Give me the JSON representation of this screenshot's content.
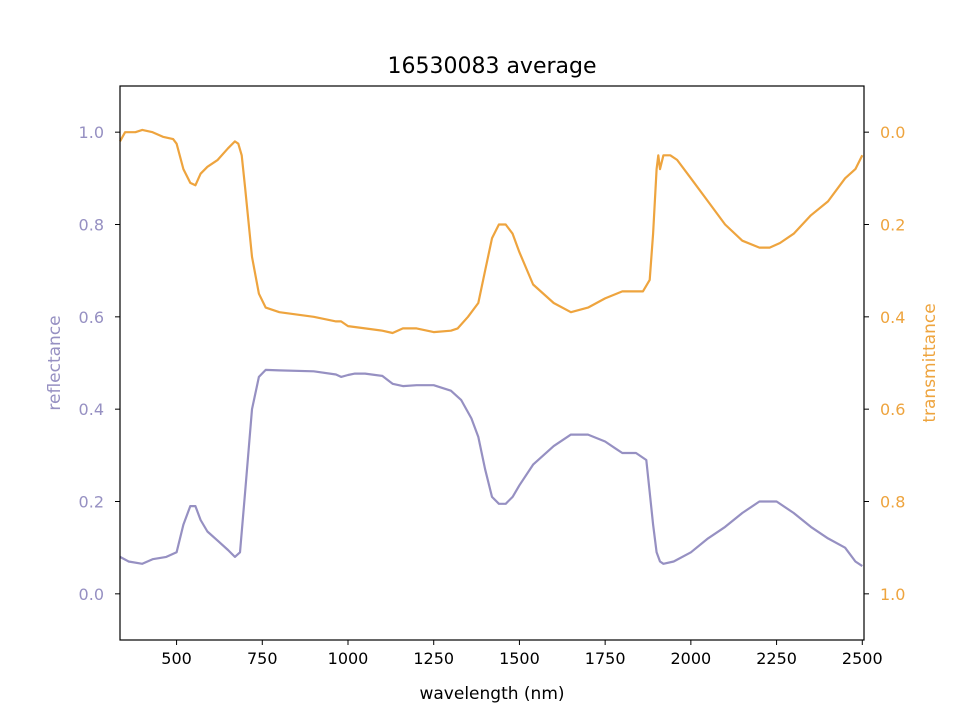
{
  "chart_data": {
    "type": "line",
    "title": "16530083 average",
    "xlabel": "wavelength (nm)",
    "ylabel_left": "reflectance",
    "ylabel_right": "transmittance",
    "xlim": [
      335,
      2505
    ],
    "ylim_left": [
      -0.1,
      1.1
    ],
    "ylim_right": [
      1.1,
      -0.1
    ],
    "x_ticks": [
      500,
      750,
      1000,
      1250,
      1500,
      1750,
      2000,
      2250,
      2500
    ],
    "y_ticks_left": [
      0.0,
      0.2,
      0.4,
      0.6,
      0.8,
      1.0
    ],
    "y_ticks_right": [
      0.0,
      0.2,
      0.4,
      0.6,
      0.8,
      1.0
    ],
    "x_tick_labels": [
      "500",
      "750",
      "1000",
      "1250",
      "1500",
      "1750",
      "2000",
      "2250",
      "2500"
    ],
    "y_tick_labels_left": [
      "0.0",
      "0.2",
      "0.4",
      "0.6",
      "0.8",
      "1.0"
    ],
    "y_tick_labels_right": [
      "0.0",
      "0.2",
      "0.4",
      "0.6",
      "0.8",
      "1.0"
    ],
    "grid": false,
    "colors": {
      "reflectance": "#9690c2",
      "transmittance": "#eea43e",
      "axes": "#000000"
    },
    "series": [
      {
        "name": "reflectance",
        "axis": "left",
        "x": [
          335,
          360,
          400,
          430,
          470,
          500,
          520,
          540,
          555,
          570,
          590,
          620,
          650,
          670,
          685,
          700,
          720,
          740,
          760,
          800,
          900,
          965,
          980,
          1000,
          1020,
          1050,
          1100,
          1130,
          1160,
          1200,
          1250,
          1300,
          1330,
          1360,
          1380,
          1400,
          1420,
          1440,
          1460,
          1480,
          1500,
          1540,
          1600,
          1650,
          1700,
          1750,
          1780,
          1800,
          1840,
          1870,
          1880,
          1890,
          1900,
          1910,
          1920,
          1950,
          2000,
          2050,
          2100,
          2150,
          2200,
          2250,
          2300,
          2350,
          2400,
          2450,
          2480,
          2500
        ],
        "y": [
          0.08,
          0.07,
          0.065,
          0.075,
          0.08,
          0.09,
          0.15,
          0.19,
          0.19,
          0.16,
          0.135,
          0.115,
          0.095,
          0.08,
          0.09,
          0.22,
          0.4,
          0.47,
          0.485,
          0.484,
          0.482,
          0.475,
          0.47,
          0.474,
          0.477,
          0.477,
          0.472,
          0.455,
          0.45,
          0.452,
          0.452,
          0.44,
          0.42,
          0.38,
          0.34,
          0.27,
          0.21,
          0.195,
          0.195,
          0.21,
          0.235,
          0.28,
          0.32,
          0.345,
          0.345,
          0.33,
          0.315,
          0.305,
          0.305,
          0.29,
          0.22,
          0.15,
          0.09,
          0.07,
          0.065,
          0.07,
          0.09,
          0.12,
          0.145,
          0.175,
          0.2,
          0.2,
          0.175,
          0.145,
          0.12,
          0.1,
          0.07,
          0.06
        ]
      },
      {
        "name": "transmittance",
        "axis": "right",
        "x": [
          335,
          350,
          380,
          400,
          430,
          460,
          490,
          500,
          520,
          540,
          555,
          570,
          590,
          620,
          650,
          670,
          680,
          690,
          700,
          720,
          740,
          760,
          800,
          900,
          965,
          980,
          1000,
          1050,
          1100,
          1130,
          1160,
          1200,
          1250,
          1300,
          1320,
          1350,
          1380,
          1400,
          1420,
          1440,
          1460,
          1480,
          1500,
          1540,
          1600,
          1650,
          1700,
          1750,
          1800,
          1830,
          1860,
          1880,
          1890,
          1900,
          1905,
          1910,
          1920,
          1940,
          1960,
          2000,
          2050,
          2100,
          2150,
          2200,
          2230,
          2260,
          2300,
          2350,
          2400,
          2450,
          2480,
          2500
        ],
        "y": [
          0.02,
          0.0,
          0.0,
          -0.005,
          0.0,
          0.01,
          0.015,
          0.025,
          0.08,
          0.11,
          0.115,
          0.09,
          0.075,
          0.06,
          0.035,
          0.02,
          0.025,
          0.05,
          0.12,
          0.27,
          0.35,
          0.38,
          0.39,
          0.4,
          0.41,
          0.41,
          0.42,
          0.425,
          0.43,
          0.435,
          0.425,
          0.425,
          0.433,
          0.43,
          0.425,
          0.4,
          0.37,
          0.3,
          0.23,
          0.2,
          0.2,
          0.22,
          0.26,
          0.33,
          0.37,
          0.39,
          0.38,
          0.36,
          0.345,
          0.345,
          0.345,
          0.32,
          0.22,
          0.08,
          0.05,
          0.08,
          0.05,
          0.05,
          0.06,
          0.1,
          0.15,
          0.2,
          0.235,
          0.25,
          0.25,
          0.24,
          0.22,
          0.18,
          0.15,
          0.1,
          0.08,
          0.05
        ]
      }
    ]
  }
}
